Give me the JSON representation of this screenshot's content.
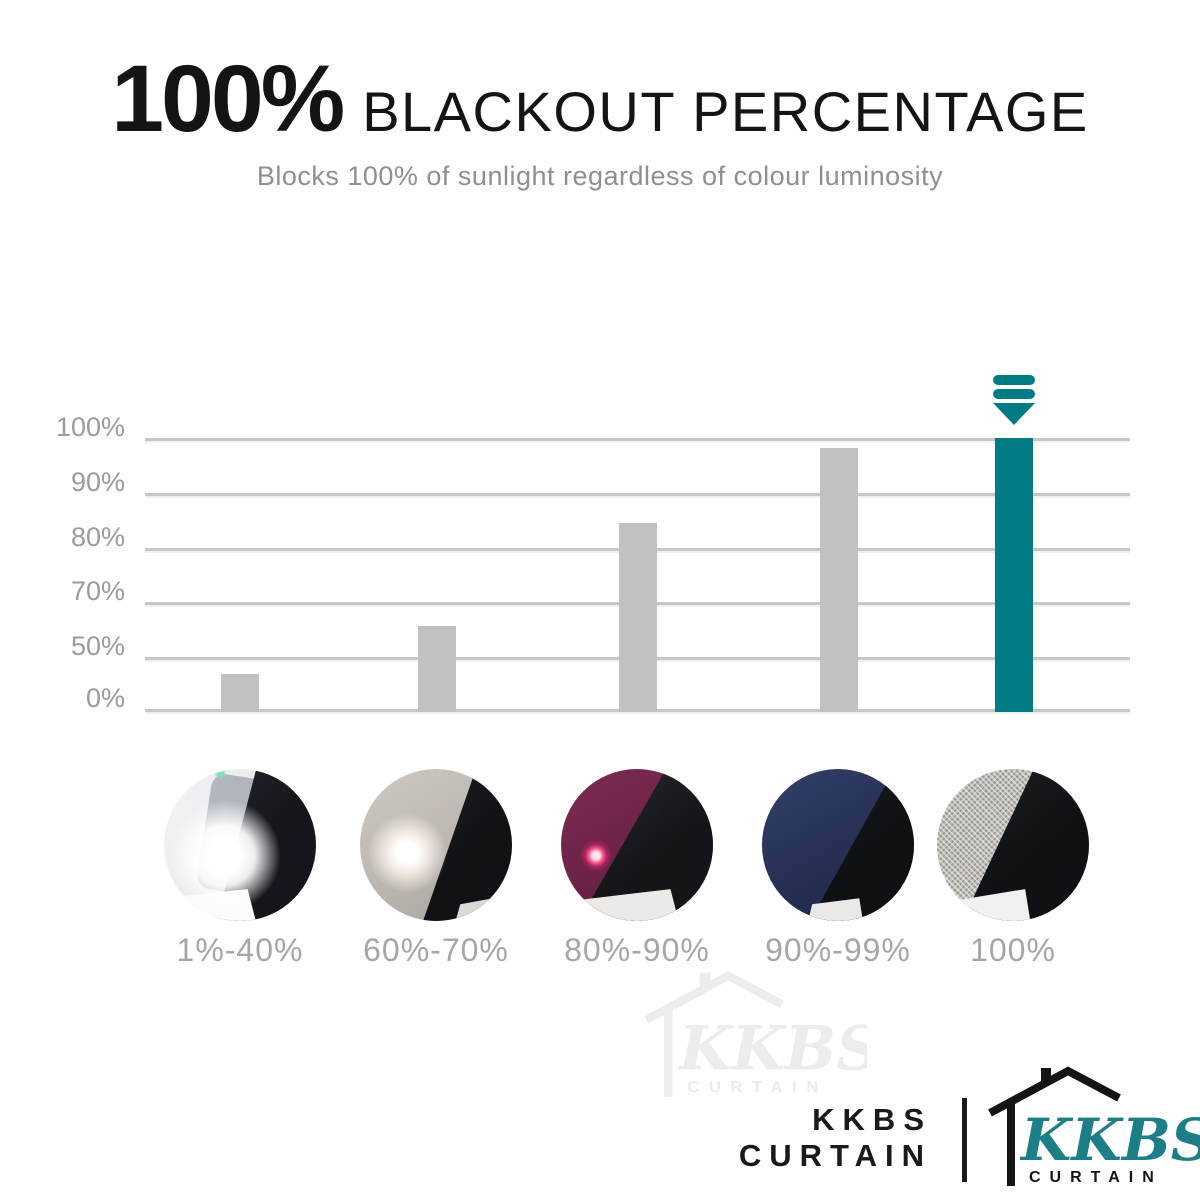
{
  "header": {
    "headline_number": "100%",
    "headline_text": "BLACKOUT PERCENTAGE",
    "subtitle": "Blocks 100% of sunlight regardless of colour luminosity"
  },
  "chart": {
    "y_tick_labels": [
      "100%",
      "90%",
      "80%",
      "70%",
      "50%",
      "0%"
    ]
  },
  "chart_data": {
    "type": "bar",
    "title": "100% BLACKOUT PERCENTAGE",
    "subtitle": "Blocks 100% of sunlight regardless of colour luminosity",
    "categories": [
      "1%-40%",
      "60%-70%",
      "80%-90%",
      "90%-99%",
      "100%"
    ],
    "values": [
      35,
      62,
      84,
      98,
      100
    ],
    "unit": "% blackout",
    "ylim": [
      0,
      100
    ],
    "y_tick_labels": [
      "100%",
      "90%",
      "80%",
      "70%",
      "50%",
      "0%"
    ],
    "grid": true,
    "legend": false,
    "bar_colors": [
      "#c1c1c1",
      "#c1c1c1",
      "#c1c1c1",
      "#c1c1c1",
      "#007b83"
    ],
    "highlight_index": 4,
    "highlight_marker": "triple-chevron-down",
    "bar_height_fractions": [
      0.139,
      0.314,
      0.69,
      0.964,
      1.0
    ]
  },
  "samples": [
    {
      "label": "1%-40%",
      "alt": "sheer white fabric over phone torch, bright light shines through"
    },
    {
      "label": "60%-70%",
      "alt": "grey fabric over phone torch, dim glow visible"
    },
    {
      "label": "80%-90%",
      "alt": "maroon fabric over phone torch, small pink light dot visible"
    },
    {
      "label": "90%-99%",
      "alt": "navy fabric over phone torch, no light visible"
    },
    {
      "label": "100%",
      "alt": "woven grey blackout fabric over phone torch, no light visible"
    }
  ],
  "watermark": {
    "script": "KKBS",
    "sub": "CURTAIN"
  },
  "footer": {
    "brand_line1": "KKBS",
    "brand_line2": "CURTAIN",
    "logo_script": "KKBS",
    "logo_sub": "CURTAIN"
  },
  "colors": {
    "accent_teal": "#007b83",
    "bar_gray": "#c1c1c1",
    "grid_gray": "#c7c7c7",
    "title_black": "#141414",
    "subtitle_gray": "#8f8f8f",
    "tick_gray": "#9b9b9b",
    "category_gray": "#a6a6a6",
    "watermark_gray": "#ececec"
  }
}
